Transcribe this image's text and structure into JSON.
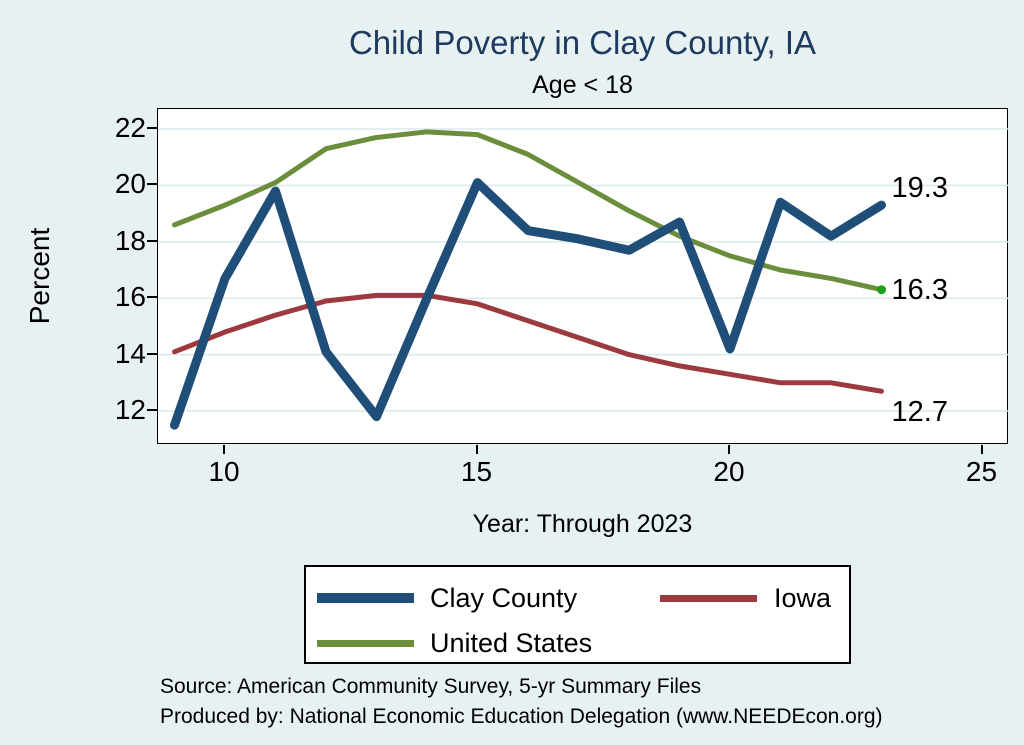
{
  "title": "Child Poverty in Clay County, IA",
  "subtitle": "Age < 18",
  "axes": {
    "y": {
      "label": "Percent",
      "ticks": [
        22,
        20,
        18,
        16,
        14,
        12
      ]
    },
    "x": {
      "label": "Year: Through 2023",
      "ticks": [
        10,
        15,
        20,
        25
      ]
    }
  },
  "end_labels": [
    {
      "text": "19.3",
      "series": "Clay County",
      "value": 19.3,
      "placement": "above"
    },
    {
      "text": "16.3",
      "series": "United States",
      "value": 16.3,
      "placement": "on"
    },
    {
      "text": "12.7",
      "series": "Iowa",
      "value": 12.7,
      "placement": "below"
    }
  ],
  "legend": {
    "items": [
      {
        "label": "Clay County",
        "color": "#1f4e78",
        "thickness": 10,
        "row": 0,
        "col": 0
      },
      {
        "label": "Iowa",
        "color": "#9c3a40",
        "thickness": 7,
        "row": 0,
        "col": 1
      },
      {
        "label": "United States",
        "color": "#6b8e3d",
        "thickness": 7,
        "row": 1,
        "col": 0
      }
    ]
  },
  "footer": {
    "source": "Source: American Community Survey, 5-yr Summary Files",
    "produced_by": "Produced by: National Economic Education Delegation (www.NEEDEcon.org)"
  },
  "colors": {
    "background": "#e8f1f2",
    "plot_background": "#ffffff",
    "grid": "#dce9ed",
    "axis": "#000000",
    "title": "#1e3a5f",
    "text": "#000000",
    "end_marker": "#15a315"
  },
  "chart_data": {
    "type": "line",
    "title": "Child Poverty in Clay County, IA",
    "subtitle": "Age < 18",
    "xlabel": "Year: Through 2023",
    "ylabel": "Percent",
    "x": [
      9,
      10,
      11,
      12,
      13,
      14,
      15,
      16,
      17,
      18,
      19,
      20,
      21,
      22,
      23
    ],
    "series": [
      {
        "name": "Clay County",
        "color": "#1f4e78",
        "line_width": 9,
        "end_marker": false,
        "values": [
          11.5,
          16.7,
          19.8,
          14.1,
          11.8,
          16.0,
          20.1,
          18.4,
          18.1,
          17.7,
          18.7,
          14.2,
          19.4,
          18.2,
          19.3
        ]
      },
      {
        "name": "Iowa",
        "color": "#9c3a40",
        "line_width": 5,
        "end_marker": false,
        "values": [
          14.1,
          14.8,
          15.4,
          15.9,
          16.1,
          16.1,
          15.8,
          15.2,
          14.6,
          14.0,
          13.6,
          13.3,
          13.0,
          13.0,
          12.7
        ]
      },
      {
        "name": "United States",
        "color": "#6b8e3d",
        "line_width": 5,
        "end_marker": true,
        "values": [
          18.6,
          19.3,
          20.1,
          21.3,
          21.7,
          21.9,
          21.8,
          21.1,
          20.1,
          19.1,
          18.2,
          17.5,
          17.0,
          16.7,
          16.3
        ]
      }
    ],
    "xticks": [
      10,
      15,
      20,
      25
    ],
    "yticks": [
      12,
      14,
      16,
      18,
      20,
      22
    ],
    "xlim": [
      8.7,
      25.3
    ],
    "ylim": [
      10.8,
      22.7
    ],
    "grid": true,
    "legend_position": "bottom"
  }
}
